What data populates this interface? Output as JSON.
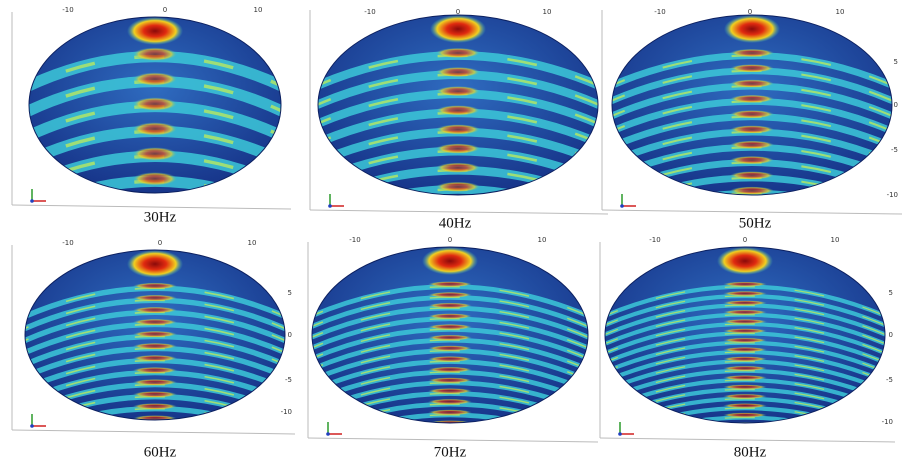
{
  "panels": [
    {
      "caption": "30Hz",
      "top_ticks": [
        "-10",
        "0",
        "10"
      ]
    },
    {
      "caption": "40Hz",
      "top_ticks": [
        "-10",
        "0",
        "10"
      ]
    },
    {
      "caption": "50Hz",
      "top_ticks": [
        "-10",
        "0",
        "10"
      ],
      "right_ticks": [
        "5",
        "0",
        "-5",
        "-10"
      ]
    },
    {
      "caption": "60Hz",
      "top_ticks": [
        "-10",
        "0",
        "10"
      ],
      "right_ticks": [
        "5",
        "0",
        "-5",
        "-10"
      ]
    },
    {
      "caption": "70Hz",
      "top_ticks": [
        "-10",
        "0",
        "10"
      ]
    },
    {
      "caption": "80Hz",
      "top_ticks": [
        "-10",
        "0",
        "10"
      ],
      "right_ticks": [
        "5",
        "0",
        "-5",
        "-10"
      ]
    }
  ]
}
